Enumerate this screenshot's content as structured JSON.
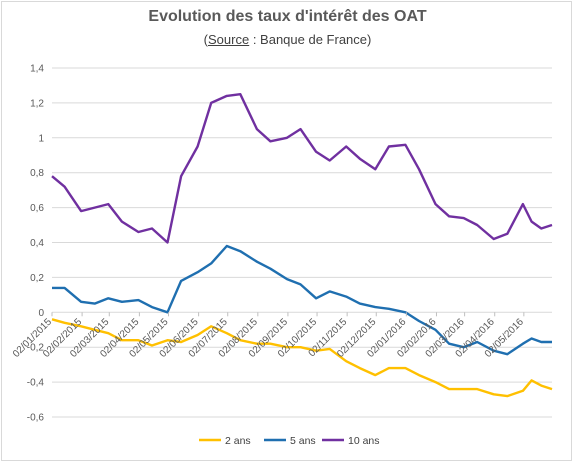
{
  "chart_data": {
    "type": "line",
    "title": "Evolution des taux d'intérêt des OAT",
    "subtitle_source_word": "Source",
    "subtitle_rest": " : Banque de France)",
    "subtitle_open": "(",
    "xlabel": "",
    "ylabel": "",
    "ylim": [
      -0.6,
      1.4
    ],
    "yticks": [
      "1,4",
      "1,2",
      "1",
      "0,8",
      "0,6",
      "0,4",
      "0,2",
      "0",
      "-0,2",
      "-0,4",
      "-0,6"
    ],
    "x_tick_labels": [
      "02/01/2015",
      "02/02/2015",
      "02/03/2015",
      "02/04/2015",
      "02/05/2015",
      "02/06/2015",
      "02/07/2015",
      "02/08/2015",
      "02/09/2015",
      "02/10/2015",
      "02/11/2015",
      "02/12/2015",
      "02/01/2016",
      "02/02/2016",
      "02/03/2016",
      "02/04/2016",
      "02/05/2016"
    ],
    "x_start": "2015-01-02",
    "x_end": "2016-05-31",
    "grid": true,
    "legend_position": "bottom",
    "series": [
      {
        "name": "2 ans",
        "color": "#FFC000",
        "points": [
          [
            "2015-01-02",
            -0.04
          ],
          [
            "2015-01-15",
            -0.06
          ],
          [
            "2015-02-01",
            -0.08
          ],
          [
            "2015-02-15",
            -0.1
          ],
          [
            "2015-03-01",
            -0.12
          ],
          [
            "2015-03-15",
            -0.16
          ],
          [
            "2015-04-01",
            -0.16
          ],
          [
            "2015-04-15",
            -0.19
          ],
          [
            "2015-05-01",
            -0.16
          ],
          [
            "2015-05-15",
            -0.17
          ],
          [
            "2015-06-01",
            -0.13
          ],
          [
            "2015-06-15",
            -0.08
          ],
          [
            "2015-07-01",
            -0.12
          ],
          [
            "2015-07-15",
            -0.16
          ],
          [
            "2015-08-01",
            -0.18
          ],
          [
            "2015-08-15",
            -0.18
          ],
          [
            "2015-09-01",
            -0.2
          ],
          [
            "2015-09-15",
            -0.2
          ],
          [
            "2015-10-01",
            -0.22
          ],
          [
            "2015-10-15",
            -0.21
          ],
          [
            "2015-11-01",
            -0.28
          ],
          [
            "2015-11-15",
            -0.32
          ],
          [
            "2015-12-01",
            -0.36
          ],
          [
            "2015-12-15",
            -0.32
          ],
          [
            "2016-01-01",
            -0.32
          ],
          [
            "2016-01-15",
            -0.36
          ],
          [
            "2016-02-01",
            -0.4
          ],
          [
            "2016-02-15",
            -0.44
          ],
          [
            "2016-03-01",
            -0.44
          ],
          [
            "2016-03-15",
            -0.44
          ],
          [
            "2016-04-01",
            -0.47
          ],
          [
            "2016-04-15",
            -0.48
          ],
          [
            "2016-05-01",
            -0.45
          ],
          [
            "2016-05-10",
            -0.39
          ],
          [
            "2016-05-20",
            -0.42
          ],
          [
            "2016-05-31",
            -0.44
          ]
        ]
      },
      {
        "name": "5 ans",
        "color": "#1F6FB0",
        "points": [
          [
            "2015-01-02",
            0.14
          ],
          [
            "2015-01-15",
            0.14
          ],
          [
            "2015-02-01",
            0.06
          ],
          [
            "2015-02-15",
            0.05
          ],
          [
            "2015-03-01",
            0.08
          ],
          [
            "2015-03-15",
            0.06
          ],
          [
            "2015-04-01",
            0.07
          ],
          [
            "2015-04-15",
            0.03
          ],
          [
            "2015-05-01",
            0.0
          ],
          [
            "2015-05-15",
            0.18
          ],
          [
            "2015-06-01",
            0.23
          ],
          [
            "2015-06-15",
            0.28
          ],
          [
            "2015-07-01",
            0.38
          ],
          [
            "2015-07-15",
            0.35
          ],
          [
            "2015-08-01",
            0.29
          ],
          [
            "2015-08-15",
            0.25
          ],
          [
            "2015-09-01",
            0.19
          ],
          [
            "2015-09-15",
            0.16
          ],
          [
            "2015-10-01",
            0.08
          ],
          [
            "2015-10-15",
            0.12
          ],
          [
            "2015-11-01",
            0.09
          ],
          [
            "2015-11-15",
            0.05
          ],
          [
            "2015-12-01",
            0.03
          ],
          [
            "2015-12-15",
            0.02
          ],
          [
            "2016-01-01",
            0.0
          ],
          [
            "2016-01-15",
            -0.05
          ],
          [
            "2016-02-01",
            -0.1
          ],
          [
            "2016-02-15",
            -0.18
          ],
          [
            "2016-03-01",
            -0.2
          ],
          [
            "2016-03-15",
            -0.17
          ],
          [
            "2016-04-01",
            -0.22
          ],
          [
            "2016-04-15",
            -0.24
          ],
          [
            "2016-05-01",
            -0.18
          ],
          [
            "2016-05-10",
            -0.15
          ],
          [
            "2016-05-20",
            -0.17
          ],
          [
            "2016-05-31",
            -0.17
          ]
        ]
      },
      {
        "name": "10 ans",
        "color": "#7030A0",
        "points": [
          [
            "2015-01-02",
            0.78
          ],
          [
            "2015-01-15",
            0.72
          ],
          [
            "2015-02-01",
            0.58
          ],
          [
            "2015-02-15",
            0.6
          ],
          [
            "2015-03-01",
            0.62
          ],
          [
            "2015-03-15",
            0.52
          ],
          [
            "2015-04-01",
            0.46
          ],
          [
            "2015-04-15",
            0.48
          ],
          [
            "2015-05-01",
            0.4
          ],
          [
            "2015-05-15",
            0.78
          ],
          [
            "2015-06-01",
            0.95
          ],
          [
            "2015-06-15",
            1.2
          ],
          [
            "2015-07-01",
            1.24
          ],
          [
            "2015-07-15",
            1.25
          ],
          [
            "2015-08-01",
            1.05
          ],
          [
            "2015-08-15",
            0.98
          ],
          [
            "2015-09-01",
            1.0
          ],
          [
            "2015-09-15",
            1.05
          ],
          [
            "2015-10-01",
            0.92
          ],
          [
            "2015-10-15",
            0.87
          ],
          [
            "2015-11-01",
            0.95
          ],
          [
            "2015-11-15",
            0.88
          ],
          [
            "2015-12-01",
            0.82
          ],
          [
            "2015-12-15",
            0.95
          ],
          [
            "2016-01-01",
            0.96
          ],
          [
            "2016-01-15",
            0.82
          ],
          [
            "2016-02-01",
            0.62
          ],
          [
            "2016-02-15",
            0.55
          ],
          [
            "2016-03-01",
            0.54
          ],
          [
            "2016-03-15",
            0.5
          ],
          [
            "2016-04-01",
            0.42
          ],
          [
            "2016-04-15",
            0.45
          ],
          [
            "2016-05-01",
            0.62
          ],
          [
            "2016-05-10",
            0.52
          ],
          [
            "2016-05-20",
            0.48
          ],
          [
            "2016-05-31",
            0.5
          ]
        ]
      }
    ]
  }
}
